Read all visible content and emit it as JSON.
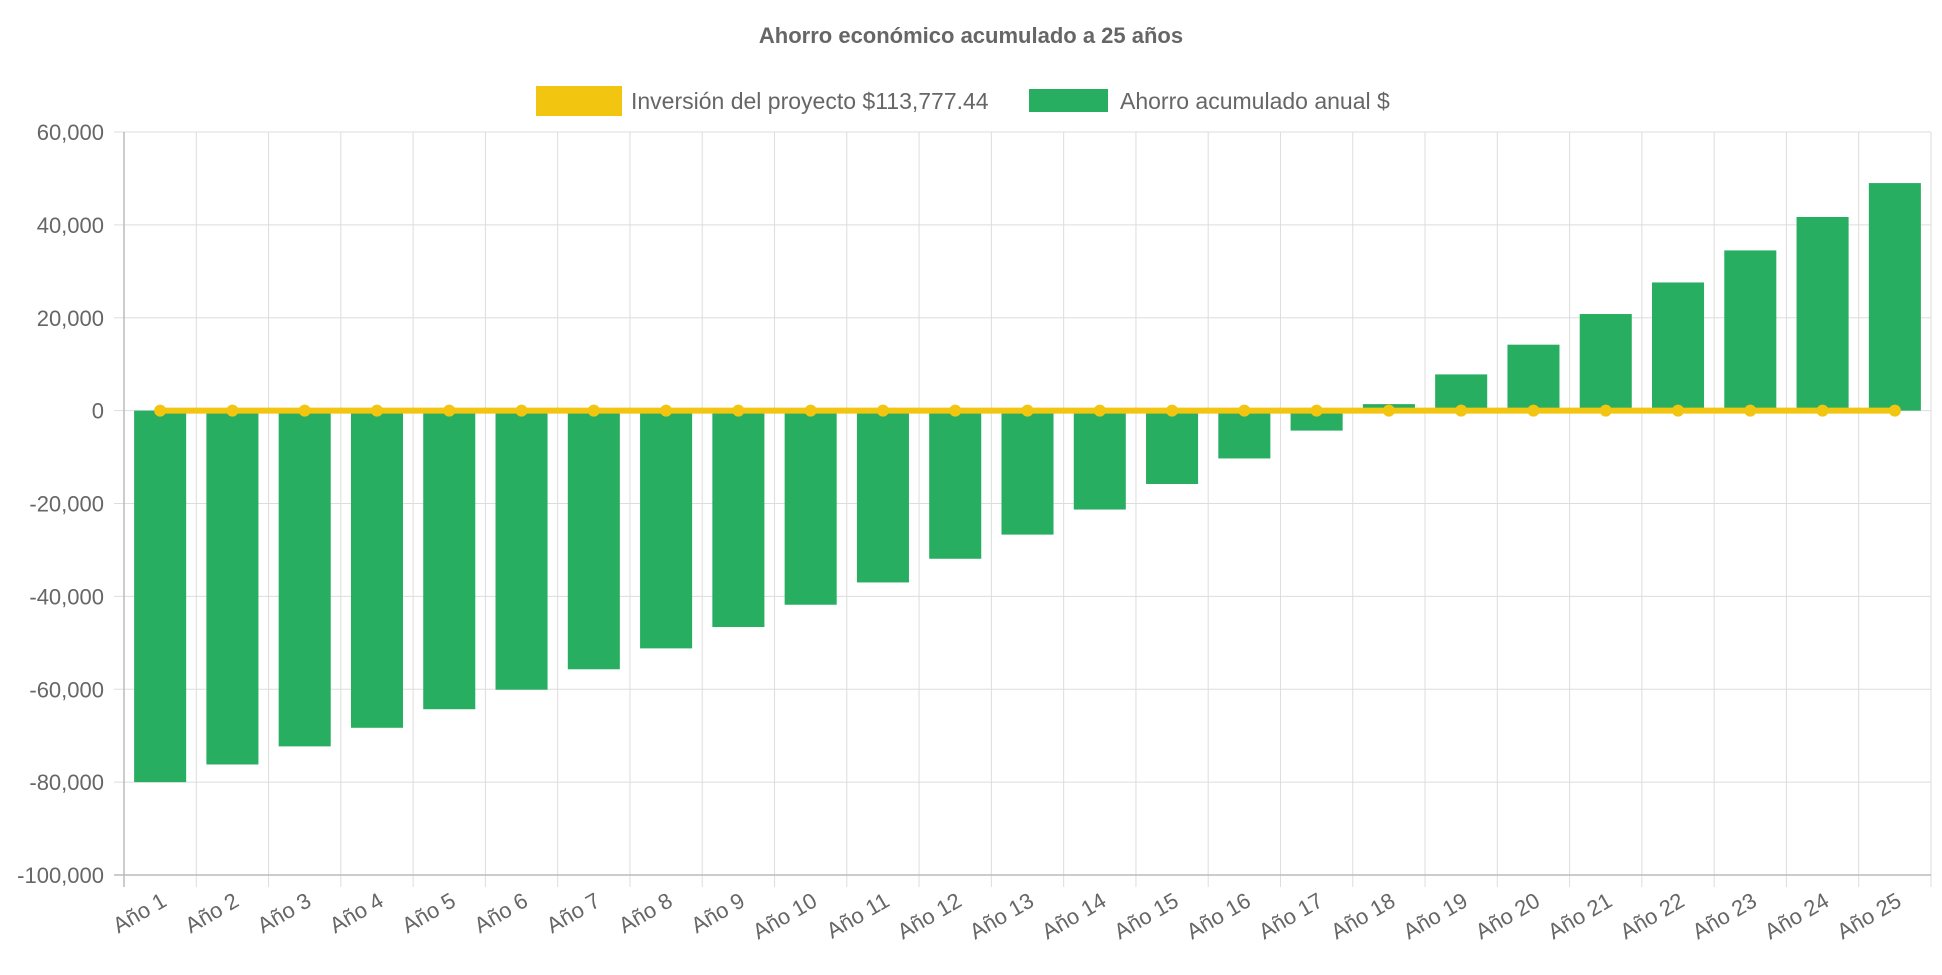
{
  "colors": {
    "investment": "#f2c511",
    "savings": "#27ae60",
    "text": "#666666",
    "grid": "#dddddd"
  },
  "chart_data": {
    "type": "bar",
    "title": "Ahorro económico acumulado a 25 años",
    "xlabel": "",
    "ylabel": "",
    "ylim": [
      -100000,
      60000
    ],
    "y_ticks": [
      60000,
      40000,
      20000,
      0,
      -20000,
      -40000,
      -60000,
      -80000,
      -100000
    ],
    "y_tick_labels": [
      "60,000",
      "40,000",
      "20,000",
      "0",
      "-20,000",
      "-40,000",
      "-60,000",
      "-80,000",
      "-100,000"
    ],
    "grid": true,
    "legend_position": "top",
    "categories": [
      "Año 1",
      "Año 2",
      "Año 3",
      "Año 4",
      "Año 5",
      "Año 6",
      "Año 7",
      "Año 8",
      "Año 9",
      "Año 10",
      "Año 11",
      "Año 12",
      "Año 13",
      "Año 14",
      "Año 15",
      "Año 16",
      "Año 17",
      "Año 18",
      "Año 19",
      "Año 20",
      "Año 21",
      "Año 22",
      "Año 23",
      "Año 24",
      "Año 25"
    ],
    "series": [
      {
        "name": "Inversión del proyecto $113,777.44",
        "type": "line",
        "values": [
          0,
          0,
          0,
          0,
          0,
          0,
          0,
          0,
          0,
          0,
          0,
          0,
          0,
          0,
          0,
          0,
          0,
          0,
          0,
          0,
          0,
          0,
          0,
          0,
          0
        ]
      },
      {
        "name": "Ahorro acumulado anual $",
        "type": "bar",
        "values": [
          -80000,
          -76200,
          -72300,
          -68300,
          -64300,
          -60100,
          -55700,
          -51200,
          -46600,
          -41800,
          -37000,
          -31900,
          -26700,
          -21300,
          -15800,
          -10300,
          -4300,
          1400,
          7800,
          14200,
          20800,
          27600,
          34500,
          41700,
          49000
        ]
      }
    ]
  }
}
